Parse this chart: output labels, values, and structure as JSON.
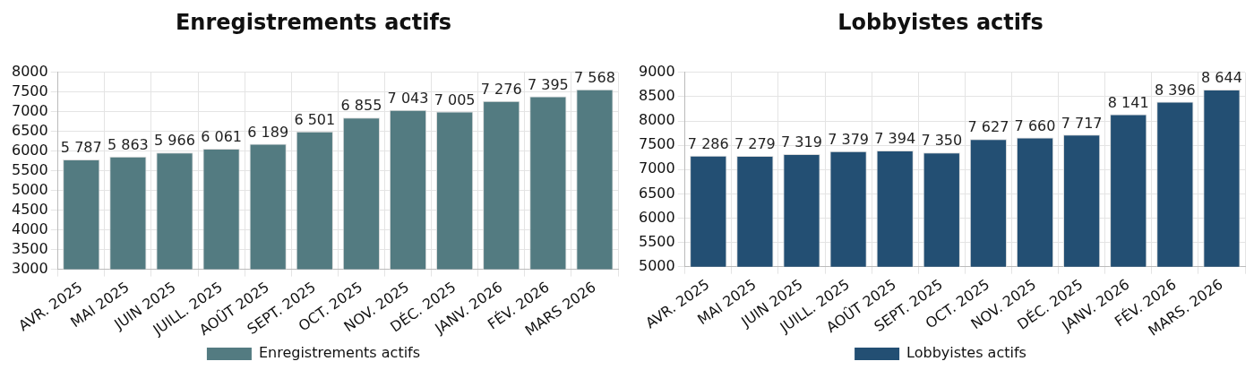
{
  "chart_data": [
    {
      "type": "bar",
      "title": "Enregistrements actifs",
      "categories": [
        "AVR. 2025",
        "MAI 2025",
        "JUIN 2025",
        "JUILL. 2025",
        "AOÛT 2025",
        "SEPT. 2025",
        "OCT. 2025",
        "NOV. 2025",
        "DÉC. 2025",
        "JANV. 2026",
        "FÉV. 2026",
        "MARS 2026"
      ],
      "series": [
        {
          "name": "Enregistrements actifs",
          "color": "#537b81",
          "values": [
            5787,
            5863,
            5966,
            6061,
            6189,
            6501,
            6855,
            7043,
            7005,
            7276,
            7395,
            7568
          ],
          "value_labels": [
            "5 787",
            "5 863",
            "5 966",
            "6 061",
            "6 189",
            "6 501",
            "6 855",
            "7 043",
            "7 005",
            "7 276",
            "7 395",
            "7 568"
          ]
        }
      ],
      "ylim": [
        3000,
        8000
      ],
      "yticks": [
        3000,
        3500,
        4000,
        4500,
        5000,
        5500,
        6000,
        6500,
        7000,
        7500,
        8000
      ],
      "grid": true,
      "legend": "bottom"
    },
    {
      "type": "bar",
      "title": "Lobbyistes actifs",
      "categories": [
        "AVR. 2025",
        "MAI 2025",
        "JUIN 2025",
        "JUILL. 2025",
        "AOÛT 2025",
        "SEPT. 2025",
        "OCT. 2025",
        "NOV. 2025",
        "DÉC. 2025",
        "JANV. 2026",
        "FÉV. 2026",
        "MARS. 2026"
      ],
      "series": [
        {
          "name": "Lobbyistes actifs",
          "color": "#234f73",
          "values": [
            7286,
            7279,
            7319,
            7379,
            7394,
            7350,
            7627,
            7660,
            7717,
            8141,
            8396,
            8644
          ],
          "value_labels": [
            "7 286",
            "7 279",
            "7 319",
            "7 379",
            "7 394",
            "7 350",
            "7 627",
            "7 660",
            "7 717",
            "8 141",
            "8 396",
            "8 644"
          ]
        }
      ],
      "ylim": [
        5000,
        9000
      ],
      "yticks": [
        5000,
        5500,
        6000,
        6500,
        7000,
        7500,
        8000,
        8500,
        9000
      ],
      "grid": true,
      "legend": "bottom"
    }
  ]
}
